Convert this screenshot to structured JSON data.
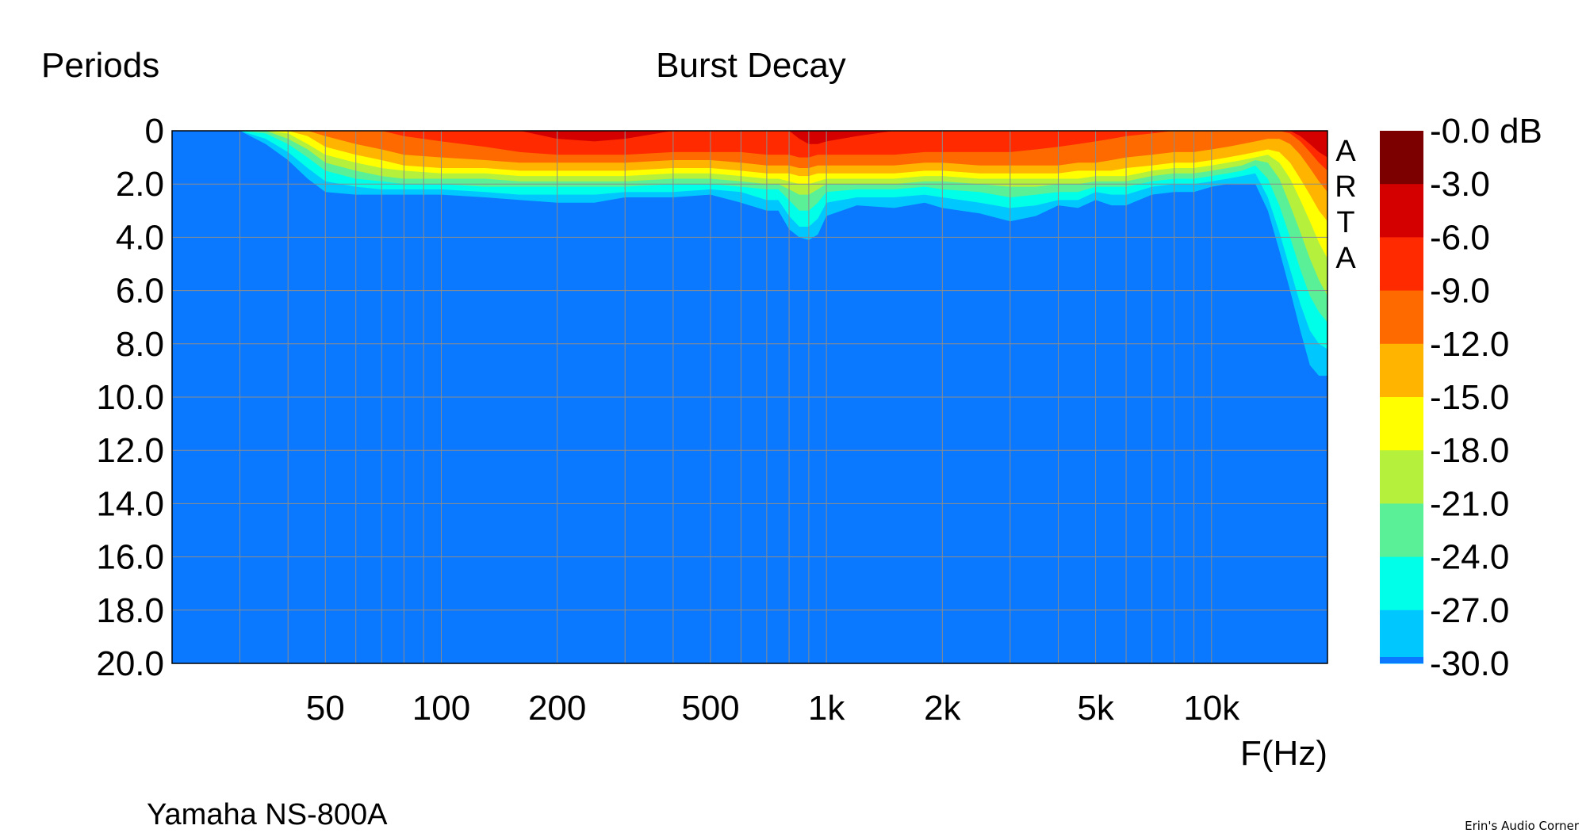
{
  "chart_data": {
    "type": "heatmap",
    "title": "Burst Decay",
    "ylabel": "Periods",
    "xlabel": "F(Hz)",
    "x_scale": "log",
    "xlim": [
      20,
      20000
    ],
    "ylim": [
      0,
      20
    ],
    "y_inverted": true,
    "grid": true,
    "x_ticks": [
      {
        "value": 50,
        "label": "50"
      },
      {
        "value": 100,
        "label": "100"
      },
      {
        "value": 200,
        "label": "200"
      },
      {
        "value": 500,
        "label": "500"
      },
      {
        "value": 1000,
        "label": "1k"
      },
      {
        "value": 2000,
        "label": "2k"
      },
      {
        "value": 5000,
        "label": "5k"
      },
      {
        "value": 10000,
        "label": "10k"
      }
    ],
    "y_ticks": [
      "0",
      "2.0",
      "4.0",
      "6.0",
      "8.0",
      "10.0",
      "12.0",
      "14.0",
      "16.0",
      "18.0",
      "20.0"
    ],
    "colorbar": {
      "unit": "dB",
      "labels": [
        "-0.0 dB",
        "-3.0",
        "-6.0",
        "-9.0",
        "-12.0",
        "-15.0",
        "-18.0",
        "-21.0",
        "-24.0",
        "-27.0",
        "-30.0"
      ],
      "colors": [
        "#7c0000",
        "#d40000",
        "#ff2a00",
        "#ff6a00",
        "#ffb400",
        "#ffff00",
        "#b4f03c",
        "#5af098",
        "#00ffe8",
        "#00c8ff",
        "#0a78ff"
      ]
    },
    "background_color": "#0a78ff",
    "bands_note_levels_db": [
      -27,
      -24,
      -21,
      -18,
      -15,
      -12,
      -9,
      -6,
      -3
    ],
    "decay_contours": {
      "frequencies": [
        25,
        30,
        35,
        40,
        45,
        50,
        60,
        70,
        80,
        100,
        130,
        160,
        200,
        250,
        300,
        400,
        500,
        600,
        700,
        750,
        800,
        850,
        900,
        950,
        1000,
        1200,
        1500,
        1800,
        2000,
        2500,
        3000,
        3500,
        4000,
        4500,
        5000,
        5500,
        6000,
        7000,
        8000,
        9000,
        10000,
        11000,
        12000,
        13000,
        14000,
        15000,
        16000,
        17000,
        18000,
        19000,
        20000
      ],
      "levels": [
        {
          "db": -27,
          "periods": [
            0,
            0,
            0.5,
            1.1,
            1.8,
            2.3,
            2.4,
            2.4,
            2.4,
            2.4,
            2.5,
            2.6,
            2.7,
            2.7,
            2.5,
            2.5,
            2.4,
            2.7,
            3.0,
            3.0,
            3.7,
            4.0,
            4.1,
            3.9,
            3.2,
            2.8,
            2.9,
            2.7,
            2.9,
            3.1,
            3.4,
            3.2,
            2.8,
            2.9,
            2.6,
            2.8,
            2.8,
            2.4,
            2.3,
            2.3,
            2.1,
            2.0,
            2.0,
            2.0,
            3.0,
            4.5,
            6.0,
            7.5,
            8.8,
            9.2,
            9.2
          ]
        },
        {
          "db": -24,
          "periods": [
            0,
            0,
            0.3,
            0.8,
            1.4,
            1.9,
            2.1,
            2.2,
            2.2,
            2.2,
            2.3,
            2.4,
            2.4,
            2.4,
            2.3,
            2.3,
            2.2,
            2.3,
            2.6,
            2.6,
            3.2,
            3.6,
            3.6,
            3.3,
            2.7,
            2.5,
            2.5,
            2.4,
            2.5,
            2.7,
            2.9,
            2.8,
            2.6,
            2.6,
            2.3,
            2.4,
            2.4,
            2.1,
            2.0,
            2.0,
            1.9,
            1.8,
            1.7,
            1.6,
            2.5,
            3.8,
            5.2,
            6.5,
            7.5,
            8.0,
            8.2
          ]
        },
        {
          "db": -21,
          "periods": [
            0,
            0,
            0.1,
            0.5,
            1.0,
            1.5,
            1.8,
            1.9,
            2.0,
            2.0,
            2.1,
            2.1,
            2.1,
            2.1,
            2.1,
            2.0,
            2.0,
            2.1,
            2.2,
            2.2,
            2.6,
            3.0,
            3.0,
            2.7,
            2.3,
            2.2,
            2.2,
            2.1,
            2.2,
            2.3,
            2.5,
            2.4,
            2.3,
            2.3,
            2.1,
            2.1,
            2.1,
            1.9,
            1.8,
            1.8,
            1.7,
            1.6,
            1.5,
            1.3,
            1.8,
            2.8,
            4.0,
            5.2,
            6.2,
            6.8,
            7.2
          ]
        },
        {
          "db": -18,
          "periods": [
            0,
            0,
            0,
            0.3,
            0.7,
            1.2,
            1.5,
            1.7,
            1.8,
            1.8,
            1.8,
            1.9,
            1.9,
            1.9,
            1.9,
            1.8,
            1.8,
            1.9,
            2.0,
            2.0,
            2.2,
            2.4,
            2.4,
            2.2,
            2.0,
            2.0,
            2.0,
            1.9,
            1.9,
            2.0,
            2.1,
            2.1,
            2.0,
            2.0,
            1.9,
            1.9,
            1.9,
            1.7,
            1.6,
            1.6,
            1.5,
            1.4,
            1.3,
            1.1,
            1.2,
            1.8,
            2.8,
            3.8,
            4.8,
            5.6,
            6.2
          ]
        },
        {
          "db": -15,
          "periods": [
            0,
            0,
            0,
            0.1,
            0.5,
            0.9,
            1.2,
            1.4,
            1.5,
            1.6,
            1.6,
            1.7,
            1.7,
            1.7,
            1.7,
            1.6,
            1.6,
            1.7,
            1.8,
            1.8,
            1.9,
            2.0,
            2.0,
            1.9,
            1.8,
            1.8,
            1.8,
            1.7,
            1.7,
            1.8,
            1.8,
            1.8,
            1.8,
            1.8,
            1.7,
            1.7,
            1.7,
            1.5,
            1.4,
            1.4,
            1.3,
            1.2,
            1.1,
            1.0,
            0.9,
            1.2,
            1.8,
            2.6,
            3.4,
            4.2,
            4.8
          ]
        },
        {
          "db": -12,
          "periods": [
            0,
            0,
            0,
            0,
            0.2,
            0.6,
            0.9,
            1.1,
            1.3,
            1.4,
            1.4,
            1.5,
            1.5,
            1.5,
            1.5,
            1.4,
            1.4,
            1.5,
            1.6,
            1.6,
            1.6,
            1.7,
            1.7,
            1.6,
            1.6,
            1.6,
            1.6,
            1.5,
            1.5,
            1.6,
            1.6,
            1.6,
            1.6,
            1.5,
            1.5,
            1.5,
            1.4,
            1.3,
            1.2,
            1.2,
            1.1,
            1.0,
            0.9,
            0.8,
            0.7,
            0.8,
            1.2,
            1.8,
            2.4,
            3.0,
            3.4
          ]
        },
        {
          "db": -9,
          "periods": [
            0,
            0,
            0,
            0,
            0,
            0.2,
            0.5,
            0.7,
            0.9,
            1.0,
            1.1,
            1.2,
            1.2,
            1.2,
            1.2,
            1.1,
            1.1,
            1.2,
            1.3,
            1.3,
            1.3,
            1.4,
            1.4,
            1.3,
            1.3,
            1.3,
            1.3,
            1.2,
            1.2,
            1.3,
            1.3,
            1.3,
            1.3,
            1.2,
            1.2,
            1.1,
            1.0,
            0.9,
            0.8,
            0.8,
            0.7,
            0.6,
            0.5,
            0.4,
            0.3,
            0.3,
            0.5,
            0.9,
            1.4,
            1.9,
            2.3
          ]
        },
        {
          "db": -6,
          "periods": [
            0,
            0,
            0,
            0,
            0,
            0,
            0,
            0,
            0.2,
            0.4,
            0.6,
            0.8,
            0.9,
            0.9,
            0.9,
            0.8,
            0.8,
            0.8,
            0.9,
            0.9,
            0.9,
            1.0,
            1.0,
            0.9,
            0.9,
            0.9,
            0.9,
            0.8,
            0.8,
            0.8,
            0.8,
            0.7,
            0.6,
            0.5,
            0.4,
            0.3,
            0.2,
            0.1,
            0,
            0,
            0,
            0,
            0,
            0,
            0,
            0,
            0.1,
            0.4,
            0.8,
            1.2,
            1.5
          ]
        },
        {
          "db": -3,
          "periods": [
            0,
            0,
            0,
            0,
            0,
            0,
            0,
            0,
            0,
            0,
            0,
            0,
            0.3,
            0.4,
            0.3,
            0,
            0,
            0,
            0,
            0,
            0,
            0.3,
            0.5,
            0.5,
            0.4,
            0.2,
            0,
            0,
            0,
            0,
            0,
            0,
            0,
            0,
            0,
            0,
            0,
            0,
            0,
            0,
            0,
            0,
            0,
            0,
            0,
            0,
            0,
            0.2,
            0.5,
            0.8,
            1.0
          ]
        }
      ]
    }
  },
  "labels": {
    "ylabel": "Periods",
    "title": "Burst Decay",
    "xlabel": "F(Hz)",
    "watermark": "ARTA",
    "device": "Yamaha NS-800A",
    "credit": "Erin's Audio Corner"
  }
}
